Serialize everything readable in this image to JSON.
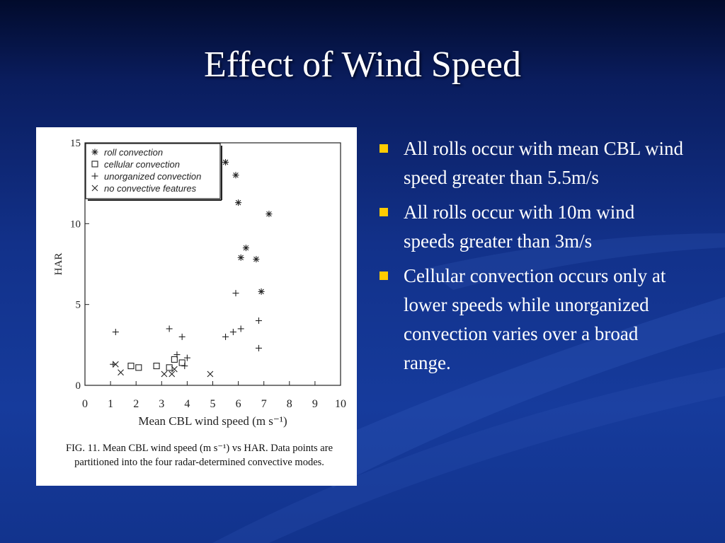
{
  "slide": {
    "title": "Effect of Wind Speed",
    "bullets": [
      "All rolls occur with mean CBL wind speed greater than 5.5m/s",
      "All rolls occur with 10m wind speeds greater than 3m/s",
      "Cellular convection occurs only at lower speeds while unorganized convection varies over a broad range."
    ],
    "bullet_color": "#ffcc00",
    "text_color": "#ffffff"
  },
  "figure": {
    "caption": "FIG. 11. Mean CBL wind speed (m s⁻¹) vs HAR. Data points are partitioned into the four radar-determined convective modes."
  },
  "chart_data": {
    "type": "scatter",
    "title": "",
    "xlabel": "Mean CBL wind speed (m s⁻¹)",
    "ylabel": "HAR",
    "xlim": [
      0,
      10
    ],
    "ylim": [
      0,
      15
    ],
    "xticks": [
      0,
      1,
      2,
      3,
      4,
      5,
      6,
      7,
      8,
      9,
      10
    ],
    "yticks": [
      0,
      5,
      10,
      15
    ],
    "legend_position": "top-left",
    "series": [
      {
        "name": "roll convection",
        "marker": "asterisk",
        "points": [
          [
            5.5,
            13.8
          ],
          [
            5.9,
            13.0
          ],
          [
            6.0,
            11.3
          ],
          [
            7.2,
            10.6
          ],
          [
            6.3,
            8.5
          ],
          [
            6.1,
            7.9
          ],
          [
            6.7,
            7.8
          ],
          [
            6.9,
            5.8
          ]
        ]
      },
      {
        "name": "cellular convection",
        "marker": "square",
        "points": [
          [
            1.8,
            1.2
          ],
          [
            2.1,
            1.1
          ],
          [
            2.8,
            1.2
          ],
          [
            3.3,
            1.1
          ],
          [
            3.5,
            1.6
          ],
          [
            3.8,
            1.4
          ]
        ]
      },
      {
        "name": "unorganized convection",
        "marker": "plus",
        "points": [
          [
            1.2,
            3.3
          ],
          [
            3.3,
            3.5
          ],
          [
            3.8,
            3.0
          ],
          [
            3.6,
            1.9
          ],
          [
            4.0,
            1.7
          ],
          [
            3.9,
            1.2
          ],
          [
            1.1,
            1.3
          ],
          [
            5.5,
            3.0
          ],
          [
            5.8,
            3.3
          ],
          [
            6.1,
            3.5
          ],
          [
            6.8,
            4.0
          ],
          [
            5.9,
            5.7
          ],
          [
            6.8,
            2.3
          ]
        ]
      },
      {
        "name": "no convective features",
        "marker": "cross",
        "points": [
          [
            1.2,
            1.3
          ],
          [
            1.4,
            0.8
          ],
          [
            3.1,
            0.7
          ],
          [
            3.4,
            0.7
          ],
          [
            3.5,
            1.0
          ],
          [
            4.9,
            0.7
          ]
        ]
      }
    ]
  }
}
